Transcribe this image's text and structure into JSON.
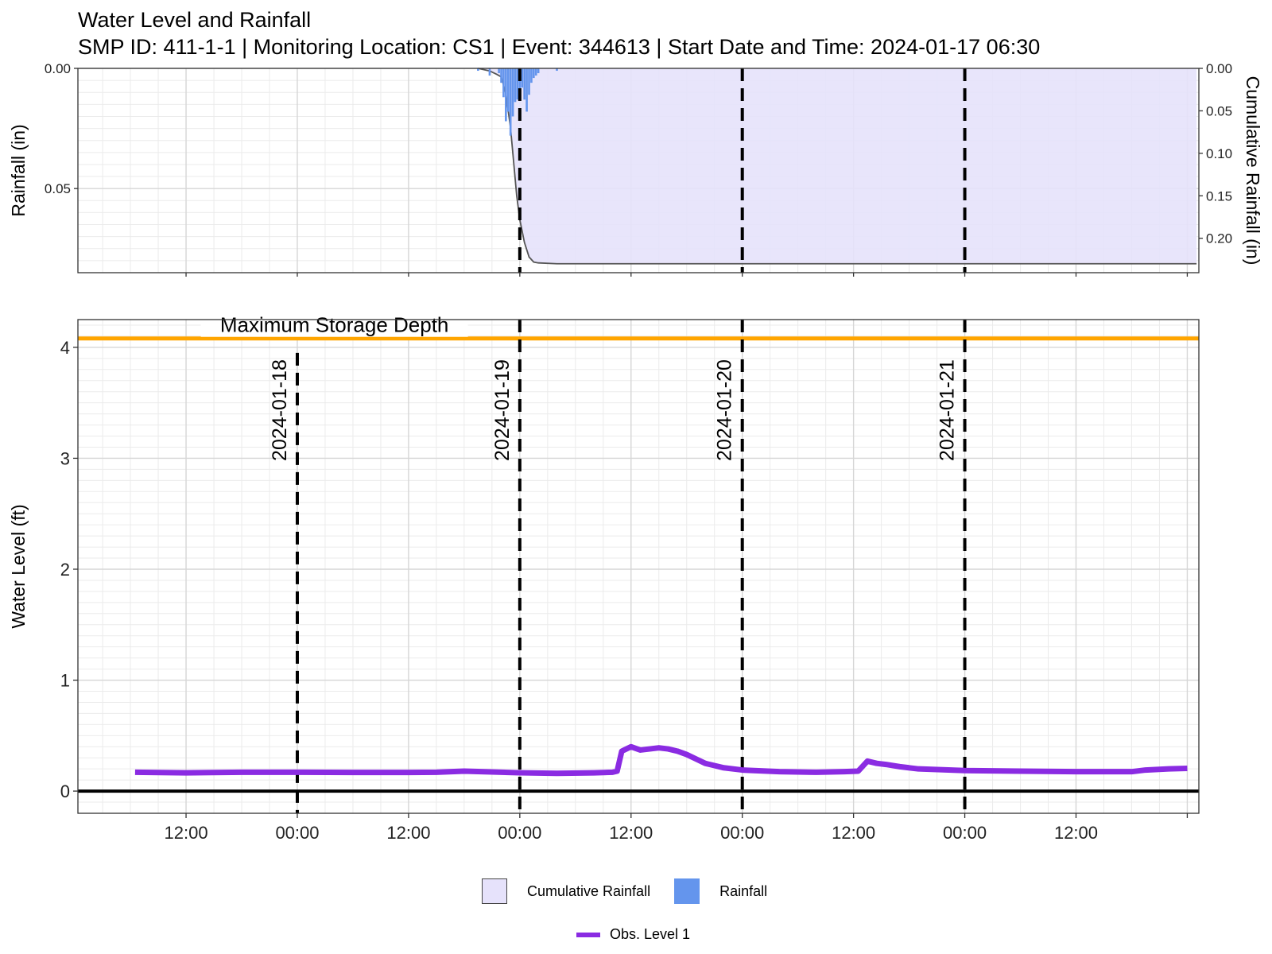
{
  "title": "Water Level and Rainfall",
  "subtitle": "SMP ID: 411-1-1 | Monitoring Location: CS1 | Event: 344613 | Start Date and Time: 2024-01-17 06:30",
  "colors": {
    "rainfall_bar": "#6495ed",
    "cumulative_fill": "#e6e2fb",
    "cumulative_line": "#555555",
    "obs_level": "#8a2be2",
    "max_storage": "#ffa500",
    "zero_line": "#000000",
    "day_marker": "#000000"
  },
  "legend": {
    "cumulative": "Cumulative Rainfall",
    "rainfall": "Rainfall",
    "obs": "Obs. Level 1"
  },
  "chart_data": [
    {
      "type": "bar",
      "panel": "rainfall",
      "ylabel": "Rainfall (in)",
      "y2label": "Cumulative Rainfall (in)",
      "y_reversed": true,
      "ylim": [
        0,
        0.085
      ],
      "yticks": [
        "0.00",
        "0.05"
      ],
      "y2lim": [
        0,
        0.2405
      ],
      "y2ticks": [
        "0.00",
        "0.05",
        "0.10",
        "0.15",
        "0.20"
      ],
      "xlim": [
        "2024-01-17 00:20",
        "2024-01-22 01:15"
      ],
      "grid": true,
      "rainfall": [
        {
          "t": "2024-01-18 19:30",
          "v": 0.001
        },
        {
          "t": "2024-01-18 20:45",
          "v": 0.003
        },
        {
          "t": "2024-01-18 21:45",
          "v": 0.002
        },
        {
          "t": "2024-01-18 22:00",
          "v": 0.006
        },
        {
          "t": "2024-01-18 22:15",
          "v": 0.012
        },
        {
          "t": "2024-01-18 22:30",
          "v": 0.022
        },
        {
          "t": "2024-01-18 22:45",
          "v": 0.018
        },
        {
          "t": "2024-01-18 23:00",
          "v": 0.028
        },
        {
          "t": "2024-01-18 23:15",
          "v": 0.02
        },
        {
          "t": "2024-01-18 23:30",
          "v": 0.014
        },
        {
          "t": "2024-01-18 23:45",
          "v": 0.013
        },
        {
          "t": "2024-01-19 00:00",
          "v": 0.01
        },
        {
          "t": "2024-01-19 00:15",
          "v": 0.008
        },
        {
          "t": "2024-01-19 00:30",
          "v": 0.013
        },
        {
          "t": "2024-01-19 00:45",
          "v": 0.018
        },
        {
          "t": "2024-01-19 01:00",
          "v": 0.011
        },
        {
          "t": "2024-01-19 01:15",
          "v": 0.006
        },
        {
          "t": "2024-01-19 01:30",
          "v": 0.004
        },
        {
          "t": "2024-01-19 01:45",
          "v": 0.003
        },
        {
          "t": "2024-01-19 02:00",
          "v": 0.002
        },
        {
          "t": "2024-01-19 04:00",
          "v": 0.001
        }
      ],
      "cumulative_rainfall": [
        {
          "t": "2024-01-18 19:30",
          "v": 0.0
        },
        {
          "t": "2024-01-18 20:45",
          "v": 0.003
        },
        {
          "t": "2024-01-18 21:30",
          "v": 0.007
        },
        {
          "t": "2024-01-18 22:00",
          "v": 0.01
        },
        {
          "t": "2024-01-18 22:30",
          "v": 0.03
        },
        {
          "t": "2024-01-18 23:00",
          "v": 0.07
        },
        {
          "t": "2024-01-18 23:20",
          "v": 0.11
        },
        {
          "t": "2024-01-18 23:40",
          "v": 0.15
        },
        {
          "t": "2024-01-19 00:00",
          "v": 0.178
        },
        {
          "t": "2024-01-19 00:30",
          "v": 0.205
        },
        {
          "t": "2024-01-19 01:00",
          "v": 0.222
        },
        {
          "t": "2024-01-19 01:30",
          "v": 0.228
        },
        {
          "t": "2024-01-19 02:00",
          "v": 0.229
        },
        {
          "t": "2024-01-19 04:00",
          "v": 0.23
        },
        {
          "t": "2024-01-22 01:00",
          "v": 0.23
        }
      ]
    },
    {
      "type": "line",
      "panel": "water_level",
      "ylabel": "Water Level (ft)",
      "ylim": [
        -0.2,
        4.25
      ],
      "yticks": [
        0,
        1,
        2,
        3,
        4
      ],
      "xlim": [
        "2024-01-17 00:20",
        "2024-01-22 01:15"
      ],
      "xticks": [
        "12:00",
        "00:00",
        "12:00",
        "00:00",
        "12:00",
        "00:00",
        "12:00",
        "00:00",
        "12:00"
      ],
      "grid": true,
      "max_storage_depth": 4.08,
      "max_storage_label": "Maximum Storage Depth",
      "day_markers": [
        {
          "t": "2024-01-18 00:00",
          "label": "2024-01-18"
        },
        {
          "t": "2024-01-19 00:00",
          "label": "2024-01-19"
        },
        {
          "t": "2024-01-20 00:00",
          "label": "2024-01-20"
        },
        {
          "t": "2024-01-21 00:00",
          "label": "2024-01-21"
        }
      ],
      "series": [
        {
          "name": "Obs. Level 1",
          "points": [
            {
              "t": "2024-01-17 06:30",
              "v": 0.17
            },
            {
              "t": "2024-01-17 12:00",
              "v": 0.165
            },
            {
              "t": "2024-01-17 18:00",
              "v": 0.17
            },
            {
              "t": "2024-01-18 00:00",
              "v": 0.17
            },
            {
              "t": "2024-01-18 06:00",
              "v": 0.168
            },
            {
              "t": "2024-01-18 12:00",
              "v": 0.168
            },
            {
              "t": "2024-01-18 15:00",
              "v": 0.17
            },
            {
              "t": "2024-01-18 18:00",
              "v": 0.18
            },
            {
              "t": "2024-01-19 00:00",
              "v": 0.165
            },
            {
              "t": "2024-01-19 04:00",
              "v": 0.16
            },
            {
              "t": "2024-01-19 08:00",
              "v": 0.165
            },
            {
              "t": "2024-01-19 10:00",
              "v": 0.17
            },
            {
              "t": "2024-01-19 10:30",
              "v": 0.18
            },
            {
              "t": "2024-01-19 11:00",
              "v": 0.36
            },
            {
              "t": "2024-01-19 11:30",
              "v": 0.38
            },
            {
              "t": "2024-01-19 12:00",
              "v": 0.4
            },
            {
              "t": "2024-01-19 13:00",
              "v": 0.37
            },
            {
              "t": "2024-01-19 14:00",
              "v": 0.38
            },
            {
              "t": "2024-01-19 15:00",
              "v": 0.39
            },
            {
              "t": "2024-01-19 16:00",
              "v": 0.38
            },
            {
              "t": "2024-01-19 17:00",
              "v": 0.36
            },
            {
              "t": "2024-01-19 18:00",
              "v": 0.33
            },
            {
              "t": "2024-01-19 19:00",
              "v": 0.29
            },
            {
              "t": "2024-01-19 20:00",
              "v": 0.25
            },
            {
              "t": "2024-01-19 21:00",
              "v": 0.23
            },
            {
              "t": "2024-01-19 22:00",
              "v": 0.21
            },
            {
              "t": "2024-01-20 00:00",
              "v": 0.19
            },
            {
              "t": "2024-01-20 04:00",
              "v": 0.175
            },
            {
              "t": "2024-01-20 08:00",
              "v": 0.17
            },
            {
              "t": "2024-01-20 11:00",
              "v": 0.175
            },
            {
              "t": "2024-01-20 12:30",
              "v": 0.18
            },
            {
              "t": "2024-01-20 13:30",
              "v": 0.27
            },
            {
              "t": "2024-01-20 14:30",
              "v": 0.25
            },
            {
              "t": "2024-01-20 15:30",
              "v": 0.24
            },
            {
              "t": "2024-01-20 17:00",
              "v": 0.22
            },
            {
              "t": "2024-01-20 19:00",
              "v": 0.2
            },
            {
              "t": "2024-01-21 00:00",
              "v": 0.185
            },
            {
              "t": "2024-01-21 06:00",
              "v": 0.18
            },
            {
              "t": "2024-01-21 12:00",
              "v": 0.175
            },
            {
              "t": "2024-01-21 18:00",
              "v": 0.175
            },
            {
              "t": "2024-01-21 19:30",
              "v": 0.19
            },
            {
              "t": "2024-01-21 22:00",
              "v": 0.2
            },
            {
              "t": "2024-01-22 00:00",
              "v": 0.205
            }
          ]
        }
      ]
    }
  ]
}
